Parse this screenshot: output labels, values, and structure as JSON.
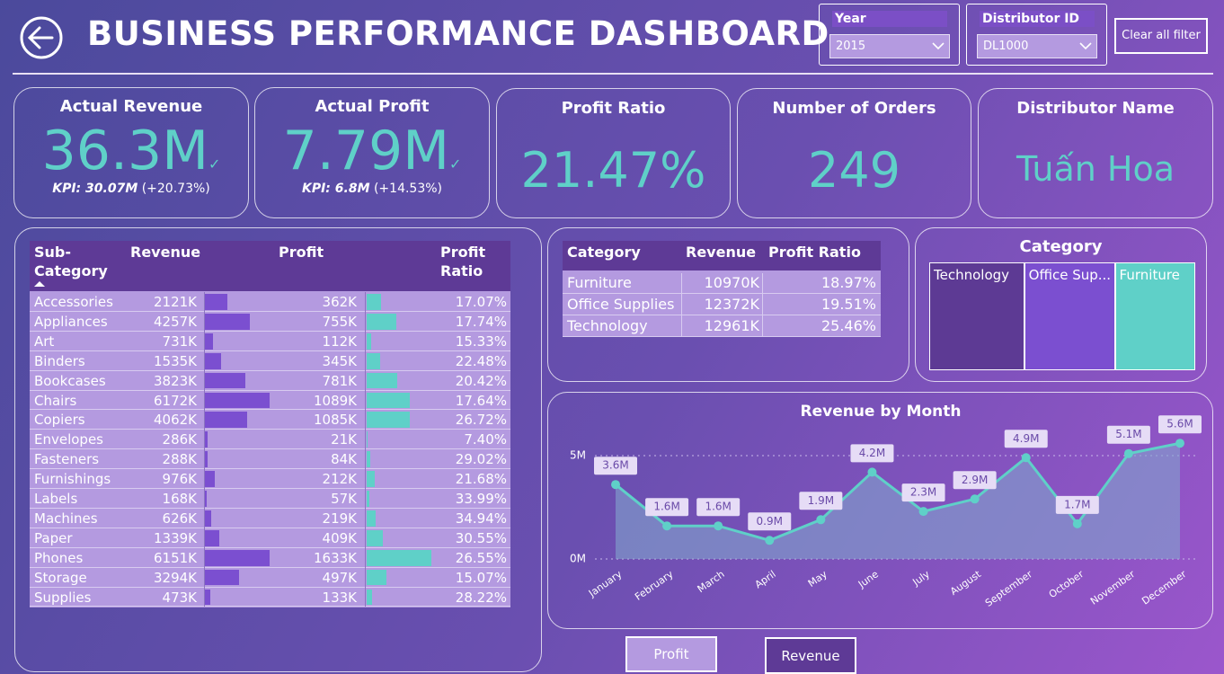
{
  "header": {
    "title": "BUSINESS PERFORMANCE DASHBOARD",
    "filters": [
      {
        "label": "Year",
        "value": "2015"
      },
      {
        "label": "Distributor ID",
        "value": "DL1000"
      }
    ],
    "clear_button": "Clear all filter"
  },
  "kpis": [
    {
      "title": "Actual Revenue",
      "value": "36.3M",
      "kpi_label": "KPI:",
      "kpi_value": "30.07M",
      "kpi_change": "(+20.73%)"
    },
    {
      "title": "Actual Profit",
      "value": "7.79M",
      "kpi_label": "KPI:",
      "kpi_value": "6.8M",
      "kpi_change": "(+14.53%)"
    },
    {
      "title": "Profit Ratio",
      "value": "21.47%"
    },
    {
      "title": "Number of Orders",
      "value": "249"
    },
    {
      "title": "Distributor Name",
      "value": "Tuấn Hoa"
    }
  ],
  "subcategory_table": {
    "headers": [
      "Sub-Category",
      "Revenue",
      "Profit",
      "Profit Ratio"
    ],
    "names": [
      "Accessories",
      "Appliances",
      "Art",
      "Binders",
      "Bookcases",
      "Chairs",
      "Copiers",
      "Envelopes",
      "Fasteners",
      "Furnishings",
      "Labels",
      "Machines",
      "Paper",
      "Phones",
      "Storage",
      "Supplies"
    ],
    "revenue": {
      "values": [
        2121,
        4257,
        731,
        1535,
        3823,
        6172,
        4062,
        286,
        288,
        976,
        168,
        626,
        1339,
        6151,
        3294,
        473
      ],
      "value_labels": [
        "2121K",
        "4257K",
        "731K",
        "1535K",
        "3823K",
        "6172K",
        "4062K",
        "286K",
        "288K",
        "976K",
        "168K",
        "626K",
        "1339K",
        "6151K",
        "3294K",
        "473K"
      ]
    },
    "profit": {
      "values": [
        362,
        755,
        112,
        345,
        781,
        1089,
        1085,
        21,
        84,
        212,
        57,
        219,
        409,
        1633,
        497,
        133
      ],
      "value_labels": [
        "362K",
        "755K",
        "112K",
        "345K",
        "781K",
        "1089K",
        "1085K",
        "21K",
        "84K",
        "212K",
        "57K",
        "219K",
        "409K",
        "1633K",
        "497K",
        "133K"
      ]
    },
    "profit_ratio": {
      "values": [
        17.07,
        17.74,
        15.33,
        22.48,
        20.42,
        17.64,
        26.72,
        7.4,
        29.02,
        21.68,
        33.99,
        34.94,
        30.55,
        26.55,
        15.07,
        28.22
      ],
      "value_labels": [
        "17.07%",
        "17.74%",
        "15.33%",
        "22.48%",
        "20.42%",
        "17.64%",
        "26.72%",
        "7.40%",
        "29.02%",
        "21.68%",
        "33.99%",
        "34.94%",
        "30.55%",
        "26.55%",
        "15.07%",
        "28.22%"
      ]
    }
  },
  "category_table": {
    "headers": [
      "Category",
      "Revenue",
      "Profit Ratio"
    ],
    "names": [
      "Furniture",
      "Office Supplies",
      "Technology"
    ],
    "revenue": {
      "values": [
        10970,
        12372,
        12961
      ],
      "value_labels": [
        "10970K",
        "12372K",
        "12961K"
      ]
    },
    "profit_ratio": {
      "values": [
        18.97,
        19.51,
        25.46
      ],
      "value_labels": [
        "18.97%",
        "19.51%",
        "25.46%"
      ]
    }
  },
  "treemap": {
    "title": "Category",
    "labels": [
      "Technology",
      "Office Sup...",
      "Furniture"
    ],
    "values": [
      12961,
      12372,
      10970
    ],
    "colors": [
      "#5d3a94",
      "#7b4fd0",
      "#5fd0c8"
    ]
  },
  "chart_data": {
    "type": "area",
    "title": "Revenue by Month",
    "categories": [
      "January",
      "February",
      "March",
      "April",
      "May",
      "June",
      "July",
      "August",
      "September",
      "October",
      "November",
      "December"
    ],
    "values": [
      3.6,
      1.6,
      1.6,
      0.9,
      1.9,
      4.2,
      2.3,
      2.9,
      4.9,
      1.7,
      5.1,
      5.6
    ],
    "value_labels": [
      "3.6M",
      "1.6M",
      "1.6M",
      "0.9M",
      "1.9M",
      "4.2M",
      "2.3M",
      "2.9M",
      "4.9M",
      "1.7M",
      "5.1M",
      "5.6M"
    ],
    "ylim": [
      0,
      6
    ],
    "yticks": [
      {
        "value": 0,
        "label": "0M"
      },
      {
        "value": 5,
        "label": "5M"
      }
    ],
    "color": "#5fd0c8",
    "grid": true
  },
  "buttons": [
    "Profit",
    "Revenue"
  ]
}
